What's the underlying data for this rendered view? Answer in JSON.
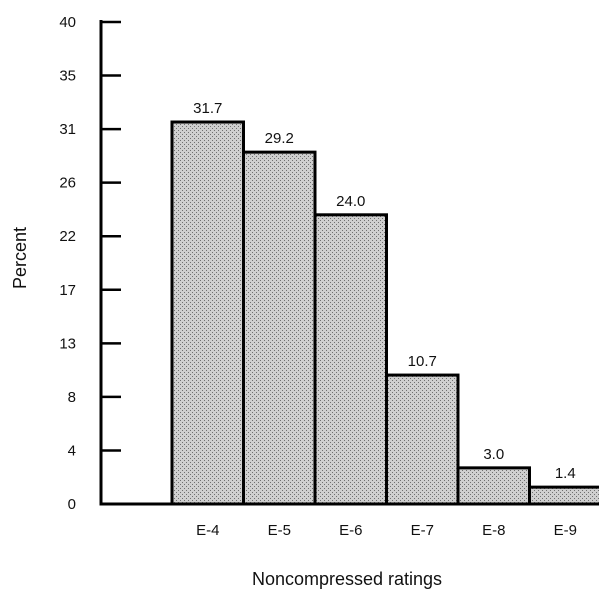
{
  "chart_data": {
    "type": "bar",
    "title": "",
    "xlabel": "Noncompressed ratings",
    "ylabel": "Percent",
    "categories": [
      "E-4",
      "E-5",
      "E-6",
      "E-7",
      "E-8",
      "E-9"
    ],
    "values": [
      31.7,
      29.2,
      24.0,
      10.7,
      3.0,
      1.4
    ],
    "value_labels": [
      "31.7",
      "29.2",
      "24.0",
      "10.7",
      "3.0",
      "1.4"
    ],
    "y_ticks": [
      0,
      4,
      8,
      13,
      17,
      22,
      26,
      31,
      35,
      40
    ],
    "ylim": [
      0,
      40
    ],
    "grid": false,
    "legend": "none",
    "bar_fill": "stippled gray",
    "colors": {
      "bar_fill": "#c9c9c9",
      "bar_stipple": "#6f6f6f",
      "outline": "#000000"
    }
  }
}
